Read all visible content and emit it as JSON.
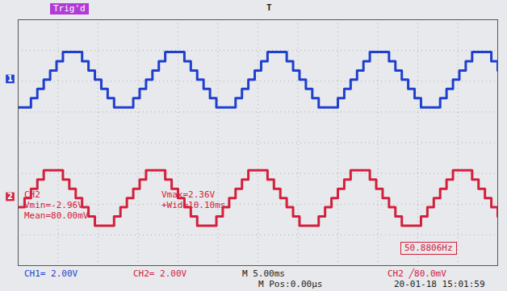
{
  "chart_data": {
    "type": "line",
    "x": [
      -30,
      -29.2,
      -28.4,
      -27.6,
      -26.8,
      -26,
      -25.2,
      -24.4,
      -23.6,
      -22.8,
      -22,
      -21.2,
      -20.4,
      -19.6,
      -18.8,
      -18,
      -17.2,
      -16.4,
      -15.6,
      -14.8,
      -14,
      -13.2,
      -12.4,
      -11.6,
      -10.8,
      -10,
      -9.2,
      -8.4,
      -7.6,
      -6.8,
      -6,
      -5.2,
      -4.4,
      -3.6,
      -2.8,
      -2,
      -1.2,
      -0.4,
      0.4,
      1.2,
      2,
      2.8,
      3.6,
      4.4,
      5.2,
      6,
      6.8,
      7.6,
      8.4,
      9.2,
      10,
      10.8,
      11.6,
      12.4,
      13.2,
      14,
      14.8,
      15.6,
      16.4,
      17.2,
      18,
      18.8,
      19.6,
      20.4,
      21.2,
      22,
      22.8,
      23.6,
      24.4,
      25.2,
      26,
      26.8,
      27.6,
      28.4,
      29.2,
      30
    ],
    "series": [
      {
        "name": "1",
        "color": "#1f3fcf",
        "line_style": "step",
        "values": [
          2.3,
          2.3,
          2.9,
          3.5,
          4.1,
          4.7,
          5.3,
          5.9,
          5.9,
          5.9,
          5.3,
          4.7,
          4.1,
          3.5,
          2.9,
          2.3,
          2.3,
          2.3,
          2.9,
          3.5,
          4.1,
          4.7,
          5.3,
          5.9,
          5.9,
          5.9,
          5.3,
          4.7,
          4.1,
          3.5,
          2.9,
          2.3,
          2.3,
          2.3,
          2.9,
          3.5,
          4.1,
          4.7,
          5.3,
          5.9,
          5.9,
          5.9,
          5.3,
          4.7,
          4.1,
          3.5,
          2.9,
          2.3,
          2.3,
          2.3,
          2.9,
          3.5,
          4.1,
          4.7,
          5.3,
          5.9,
          5.9,
          5.9,
          5.3,
          4.7,
          4.1,
          3.5,
          2.9,
          2.3,
          2.3,
          2.3,
          2.9,
          3.5,
          4.1,
          4.7,
          5.3,
          5.9,
          5.9,
          5.9,
          5.3,
          4.7
        ]
      },
      {
        "name": "2",
        "color": "#d3203c",
        "line_style": "step",
        "values": [
          -4.2,
          -3.6,
          -3.0,
          -2.4,
          -1.8,
          -1.8,
          -1.8,
          -2.4,
          -3.0,
          -3.6,
          -4.2,
          -4.8,
          -5.4,
          -5.4,
          -5.4,
          -4.8,
          -4.2,
          -3.6,
          -3.0,
          -2.4,
          -1.8,
          -1.8,
          -1.8,
          -2.4,
          -3.0,
          -3.6,
          -4.2,
          -4.8,
          -5.4,
          -5.4,
          -5.4,
          -4.8,
          -4.2,
          -3.6,
          -3.0,
          -2.4,
          -1.8,
          -1.8,
          -1.8,
          -2.4,
          -3.0,
          -3.6,
          -4.2,
          -4.8,
          -5.4,
          -5.4,
          -5.4,
          -4.8,
          -4.2,
          -3.6,
          -3.0,
          -2.4,
          -1.8,
          -1.8,
          -1.8,
          -2.4,
          -3.0,
          -3.6,
          -4.2,
          -4.8,
          -5.4,
          -5.4,
          -5.4,
          -4.8,
          -4.2,
          -3.6,
          -3.0,
          -2.4,
          -1.8,
          -1.8,
          -1.8,
          -2.4,
          -3.0,
          -3.6,
          -4.2,
          -4.8
        ]
      }
    ],
    "xlim": [
      -30,
      30
    ],
    "xticks": [
      -30,
      -25,
      -20,
      -15,
      -10,
      -5,
      0,
      5,
      10,
      15,
      20,
      25,
      30
    ],
    "ylim": [
      -8,
      8
    ],
    "yticks": [
      -8,
      -6,
      -4,
      -2,
      0,
      2,
      4,
      6,
      8
    ],
    "grid": true,
    "tick_labels": false,
    "annotations": [
      {
        "text": "Trig'd",
        "color": "#b23bd6"
      },
      {
        "text": "T",
        "color": "#222222"
      },
      {
        "text": "CH2",
        "color": "#d3203c"
      },
      {
        "text": "Vmin=-2.96V",
        "color": "#d3203c"
      },
      {
        "text": "Mean=80.00mV",
        "color": "#d3203c"
      },
      {
        "text": "Vmax=2.36V",
        "color": "#d3203c"
      },
      {
        "text": "+Wid=10.10ms",
        "color": "#d3203c"
      },
      {
        "text": "50.8806Hz",
        "color": "#d3203c"
      },
      {
        "text": "CH1= 2.00V",
        "color": "#1f3fcf"
      },
      {
        "text": "CH2= 2.00V",
        "color": "#d3203c"
      },
      {
        "text": "M 5.00ms",
        "color": "#222222"
      },
      {
        "text": "CH2 ╱80.0mV",
        "color": "#d3203c"
      },
      {
        "text": "M Pos:0.00μs",
        "color": "#222222"
      },
      {
        "text": "20-01-18 15:01:59",
        "color": "#222222"
      }
    ]
  }
}
